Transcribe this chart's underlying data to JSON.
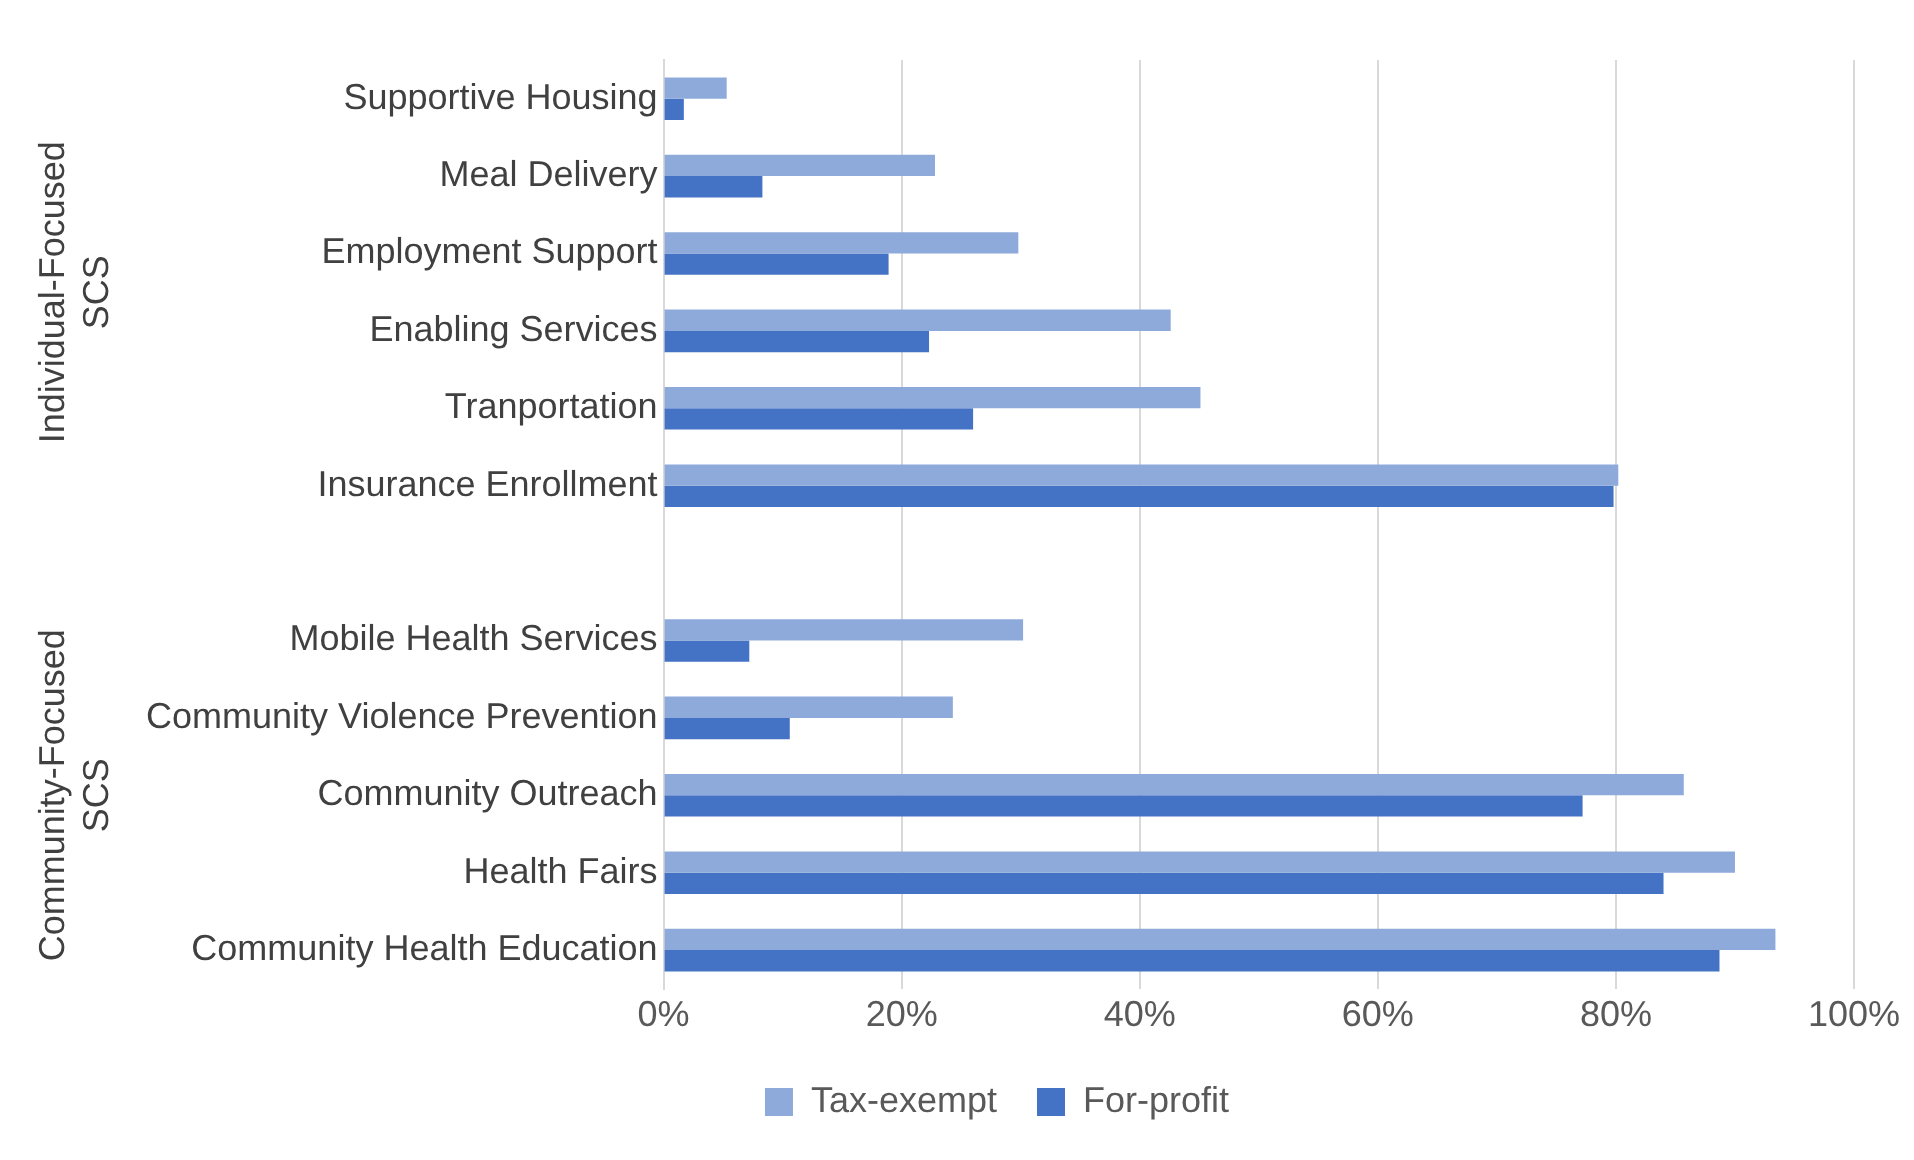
{
  "chart_data": {
    "type": "bar",
    "orientation": "horizontal",
    "categories": [
      "Supportive Housing",
      "Meal Delivery",
      "Employment Support",
      "Enabling Services",
      "Tranportation",
      "Insurance Enrollment",
      null,
      "Mobile Health Services",
      "Community Violence Prevention",
      "Community Outreach",
      "Health Fairs",
      "Community Health Education"
    ],
    "series": [
      {
        "name": "Tax-exempt",
        "color": "#8eaadb",
        "values": [
          5.3,
          22.8,
          29.8,
          42.6,
          45.1,
          80.2,
          null,
          30.2,
          24.3,
          85.7,
          90,
          93.4
        ]
      },
      {
        "name": "For-profit",
        "color": "#4472c4",
        "values": [
          1.7,
          8.3,
          18.9,
          22.3,
          26,
          79.8,
          null,
          7.2,
          10.6,
          77.2,
          84,
          88.7
        ]
      }
    ],
    "xlim": [
      0,
      100
    ],
    "xticks": [
      {
        "value": 0,
        "label": "0%"
      },
      {
        "value": 20,
        "label": "20%"
      },
      {
        "value": 40,
        "label": "40%"
      },
      {
        "value": 60,
        "label": "60%"
      },
      {
        "value": 80,
        "label": "80%"
      },
      {
        "value": 100,
        "label": "100%"
      }
    ],
    "annotations": [
      "Individual-Focused SCS",
      "Community-Focused SCS"
    ],
    "grid": "x",
    "legend": "bottom"
  }
}
